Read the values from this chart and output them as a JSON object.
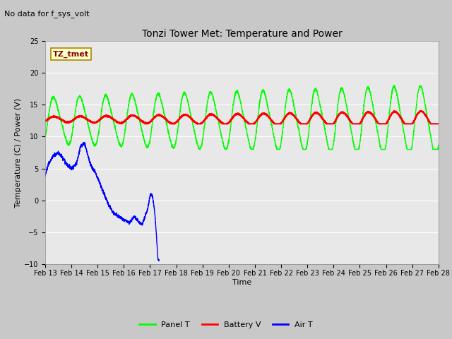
{
  "title": "Tonzi Tower Met: Temperature and Power",
  "xlabel": "Time",
  "ylabel": "Temperature (C) / Power (V)",
  "ylim": [
    -10,
    25
  ],
  "yticks": [
    -10,
    -5,
    0,
    5,
    10,
    15,
    20,
    25
  ],
  "xlim": [
    0,
    15
  ],
  "x_tick_labels": [
    "Feb 13",
    "Feb 14",
    "Feb 15",
    "Feb 16",
    "Feb 17",
    "Feb 18",
    "Feb 19",
    "Feb 20",
    "Feb 21",
    "Feb 22",
    "Feb 23",
    "Feb 24",
    "Feb 25",
    "Feb 26",
    "Feb 27",
    "Feb 28"
  ],
  "x_tick_positions": [
    0,
    1,
    2,
    3,
    4,
    5,
    6,
    7,
    8,
    9,
    10,
    11,
    12,
    13,
    14,
    15
  ],
  "no_data_text": "No data for f_sys_volt",
  "tz_tmet_label": "TZ_tmet",
  "legend_entries": [
    "Panel T",
    "Battery V",
    "Air T"
  ],
  "legend_colors": [
    "#00ff00",
    "#ff0000",
    "#0000ff"
  ],
  "panel_base": 12.5,
  "batt_base": 12.7,
  "fig_bg_color": "#c8c8c8",
  "plot_bg_color": "#e8e8e8",
  "grid_color": "#ffffff",
  "panel_color": "#00ff00",
  "batt_color": "#ff0000",
  "air_color": "#0000ff",
  "no_data_fontsize": 8,
  "title_fontsize": 10,
  "tick_fontsize": 7,
  "label_fontsize": 8,
  "legend_fontsize": 8
}
